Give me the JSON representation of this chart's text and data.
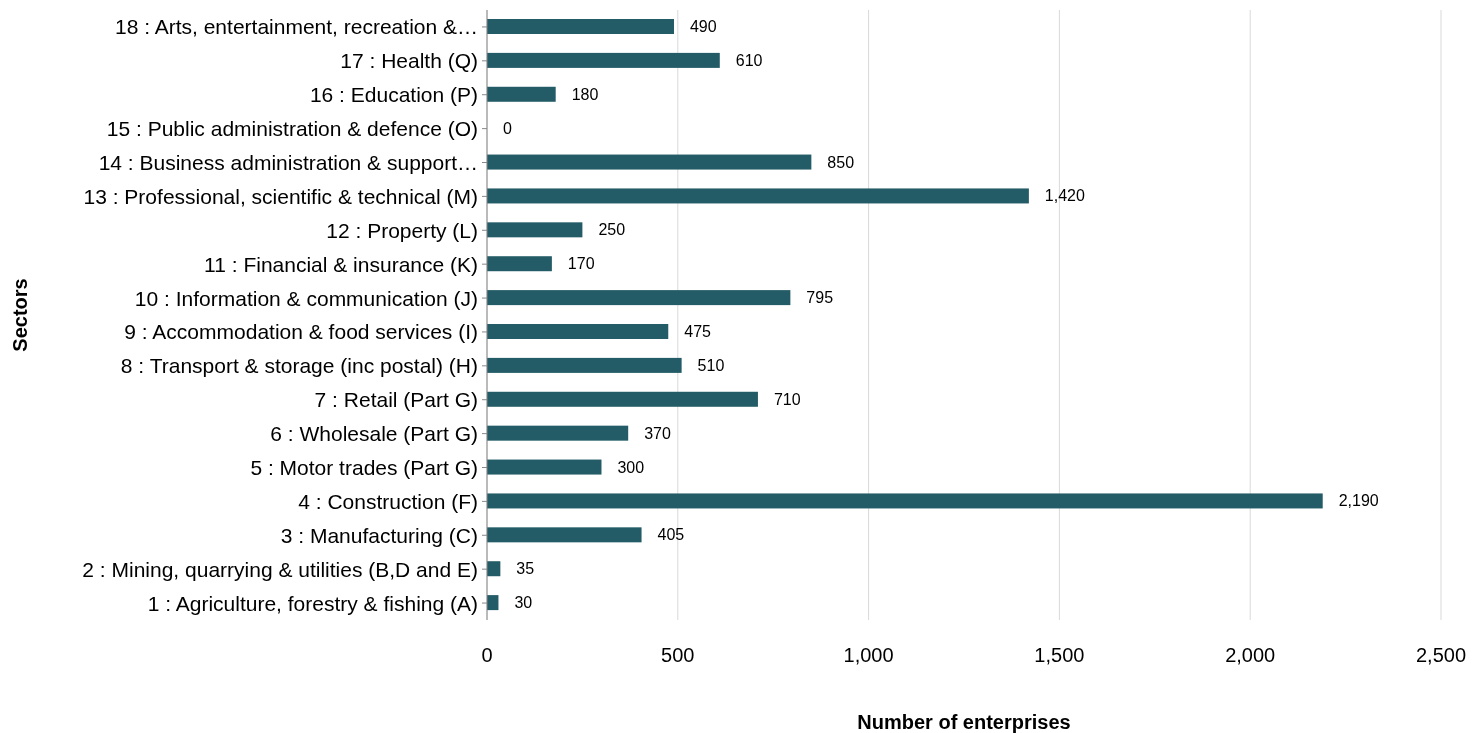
{
  "chart_data": {
    "type": "bar",
    "orientation": "horizontal",
    "xlabel": "Number of enterprises",
    "ylabel": "Sectors",
    "categories": [
      "18 : Arts, entertainment, recreation &…",
      "17 : Health (Q)",
      "16 : Education (P)",
      "15 : Public administration & defence (O)",
      "14 : Business administration & support…",
      "13 : Professional, scientific & technical (M)",
      "12 : Property (L)",
      "11 : Financial & insurance (K)",
      "10 : Information & communication (J)",
      "9 : Accommodation & food services (I)",
      "8 : Transport & storage (inc postal) (H)",
      "7 : Retail (Part G)",
      "6 : Wholesale (Part G)",
      "5 : Motor trades (Part G)",
      "4 : Construction (F)",
      "3 : Manufacturing (C)",
      "2 : Mining, quarrying & utilities (B,D and E)",
      "1 : Agriculture, forestry & fishing (A)"
    ],
    "values": [
      490,
      610,
      180,
      0,
      850,
      1420,
      250,
      170,
      795,
      475,
      510,
      710,
      370,
      300,
      2190,
      405,
      35,
      30
    ],
    "value_labels": [
      "490",
      "610",
      "180",
      "0",
      "850",
      "1,420",
      "250",
      "170",
      "795",
      "475",
      "510",
      "710",
      "370",
      "300",
      "2,190",
      "405",
      "35",
      "30"
    ],
    "color": "#235b66",
    "xlim": [
      0,
      2500
    ],
    "xticks": [
      0,
      500,
      {
        "value": 1000,
        "label": "1,000"
      },
      {
        "value": 1500,
        "label": "1,500"
      },
      {
        "value": 2000,
        "label": "2,000"
      },
      {
        "value": 2500,
        "label": "2,500"
      }
    ],
    "grid": "x",
    "legend": false
  }
}
